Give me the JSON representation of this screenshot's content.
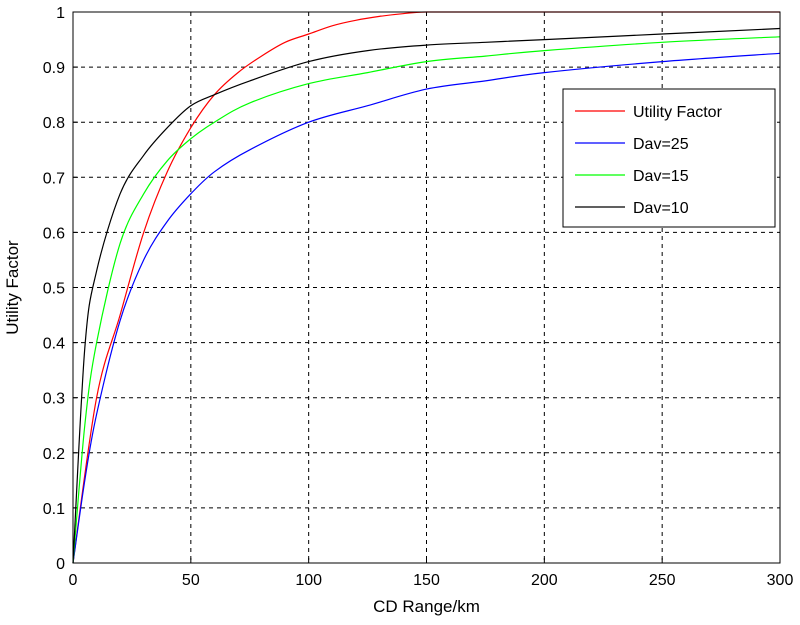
{
  "chart_data": {
    "type": "line",
    "title": "",
    "xlabel": "CD Range/km",
    "ylabel": "Utility Factor",
    "xlim": [
      0,
      300
    ],
    "ylim": [
      0,
      1
    ],
    "xticks": [
      "0",
      "50",
      "100",
      "150",
      "200",
      "250",
      "300"
    ],
    "yticks": [
      "0",
      "0.1",
      "0.2",
      "0.3",
      "0.4",
      "0.5",
      "0.6",
      "0.7",
      "0.8",
      "0.9",
      "1"
    ],
    "grid": true,
    "legend_position": "right",
    "series": [
      {
        "name": "Utility Factor",
        "color": "#ff0000",
        "x": [
          0,
          10,
          20,
          30,
          40,
          50,
          60,
          70,
          80,
          90,
          100,
          110,
          120,
          130,
          140,
          150,
          175,
          200,
          250,
          300
        ],
        "y": [
          0.0,
          0.3,
          0.45,
          0.6,
          0.71,
          0.79,
          0.85,
          0.89,
          0.92,
          0.945,
          0.96,
          0.975,
          0.985,
          0.992,
          0.997,
          1.0,
          1.0,
          1.0,
          1.0,
          1.0
        ]
      },
      {
        "name": "Dav=25",
        "color": "#0000ff",
        "x": [
          0,
          5,
          10,
          20,
          30,
          40,
          50,
          60,
          75,
          100,
          125,
          150,
          175,
          200,
          250,
          300
        ],
        "y": [
          0.0,
          0.15,
          0.27,
          0.44,
          0.55,
          0.62,
          0.67,
          0.71,
          0.75,
          0.8,
          0.83,
          0.86,
          0.875,
          0.89,
          0.91,
          0.925
        ]
      },
      {
        "name": "Dav=15",
        "color": "#00ff00",
        "x": [
          0,
          5,
          10,
          20,
          30,
          40,
          50,
          60,
          75,
          100,
          125,
          150,
          175,
          200,
          250,
          300
        ],
        "y": [
          0.0,
          0.25,
          0.4,
          0.58,
          0.67,
          0.73,
          0.77,
          0.8,
          0.835,
          0.87,
          0.89,
          0.91,
          0.92,
          0.93,
          0.945,
          0.955
        ]
      },
      {
        "name": "Dav=10",
        "color": "#000000",
        "x": [
          0,
          5,
          10,
          20,
          30,
          40,
          50,
          60,
          75,
          100,
          125,
          150,
          175,
          200,
          250,
          300
        ],
        "y": [
          0.0,
          0.39,
          0.53,
          0.67,
          0.74,
          0.79,
          0.83,
          0.85,
          0.875,
          0.91,
          0.93,
          0.94,
          0.945,
          0.95,
          0.96,
          0.97
        ]
      }
    ]
  }
}
